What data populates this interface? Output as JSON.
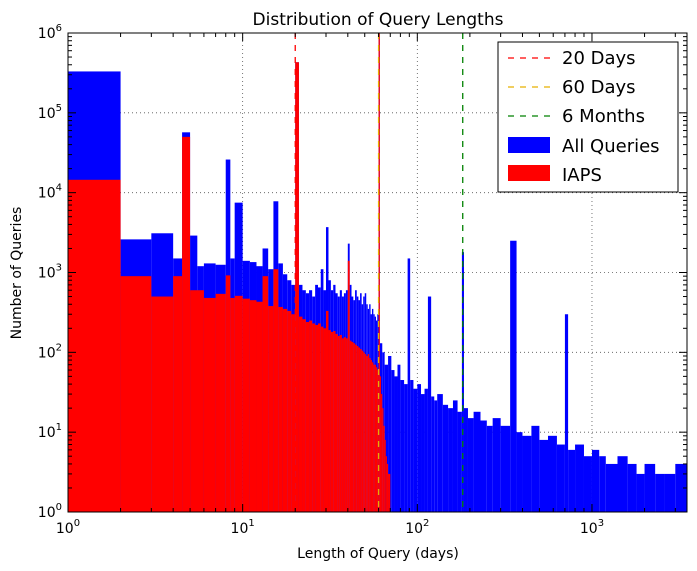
{
  "chart_data": {
    "type": "bar",
    "title": "Distribution of Query Lengths",
    "xlabel": "Length of Query (days)",
    "ylabel": "Number of Queries",
    "xscale": "log",
    "yscale": "log",
    "xlim": [
      1,
      3500
    ],
    "ylim": [
      1,
      1000000
    ],
    "grid": true,
    "legend_position": "top-right",
    "x_ticks": [
      {
        "value": 1,
        "base": "10",
        "exp": "0"
      },
      {
        "value": 10,
        "base": "10",
        "exp": "1"
      },
      {
        "value": 100,
        "base": "10",
        "exp": "2"
      },
      {
        "value": 1000,
        "base": "10",
        "exp": "3"
      }
    ],
    "y_ticks": [
      {
        "value": 1,
        "base": "10",
        "exp": "0"
      },
      {
        "value": 10,
        "base": "10",
        "exp": "1"
      },
      {
        "value": 100,
        "base": "10",
        "exp": "2"
      },
      {
        "value": 1000,
        "base": "10",
        "exp": "3"
      },
      {
        "value": 10000,
        "base": "10",
        "exp": "4"
      },
      {
        "value": 100000,
        "base": "10",
        "exp": "5"
      },
      {
        "value": 1000000,
        "base": "10",
        "exp": "6"
      }
    ],
    "vlines": [
      {
        "name": "20 Days",
        "x": 20,
        "color": "#ff0000"
      },
      {
        "name": "60 Days",
        "x": 60,
        "color": "#e6b000"
      },
      {
        "name": "6 Months",
        "x": 182,
        "color": "#008000"
      }
    ],
    "series": [
      {
        "name": "All Queries",
        "color": "#0000ff",
        "bins": [
          [
            1,
            2,
            330000
          ],
          [
            2,
            3,
            2600
          ],
          [
            3,
            4,
            3100
          ],
          [
            4,
            4.5,
            1500
          ],
          [
            4.5,
            5,
            57000
          ],
          [
            5,
            5.5,
            2900
          ],
          [
            5.5,
            6,
            1200
          ],
          [
            6,
            7,
            1300
          ],
          [
            7,
            8,
            1250
          ],
          [
            8,
            8.5,
            26000
          ],
          [
            8.5,
            9,
            1500
          ],
          [
            9,
            10,
            7500
          ],
          [
            10,
            11,
            1400
          ],
          [
            11,
            12,
            1350
          ],
          [
            12,
            13,
            1200
          ],
          [
            13,
            14,
            2000
          ],
          [
            14,
            15,
            1100
          ],
          [
            15,
            16,
            7800
          ],
          [
            16,
            17,
            1300
          ],
          [
            17,
            18,
            950
          ],
          [
            18,
            19,
            800
          ],
          [
            19,
            20,
            700
          ],
          [
            20,
            21,
            430000
          ],
          [
            21,
            22,
            700
          ],
          [
            22,
            23,
            600
          ],
          [
            23,
            24,
            550
          ],
          [
            24,
            25,
            600
          ],
          [
            25,
            26,
            500
          ],
          [
            26,
            27,
            700
          ],
          [
            27,
            28,
            650
          ],
          [
            28,
            29,
            1100
          ],
          [
            29,
            30,
            600
          ],
          [
            30,
            31,
            3700
          ],
          [
            31,
            32,
            800
          ],
          [
            32,
            33,
            600
          ],
          [
            33,
            34,
            700
          ],
          [
            34,
            35,
            550
          ],
          [
            35,
            36,
            500
          ],
          [
            36,
            37,
            600
          ],
          [
            37,
            38,
            500
          ],
          [
            38,
            39,
            550
          ],
          [
            39,
            40,
            600
          ],
          [
            40,
            41,
            2300
          ],
          [
            41,
            42,
            700
          ],
          [
            42,
            43,
            500
          ],
          [
            43,
            44,
            450
          ],
          [
            44,
            45,
            600
          ],
          [
            45,
            46,
            500
          ],
          [
            46,
            47,
            450
          ],
          [
            47,
            48,
            550
          ],
          [
            48,
            49,
            400
          ],
          [
            49,
            50,
            500
          ],
          [
            50,
            51,
            550
          ],
          [
            51,
            52,
            400
          ],
          [
            52,
            53,
            350
          ],
          [
            53,
            54,
            400
          ],
          [
            54,
            55,
            300
          ],
          [
            55,
            56,
            350
          ],
          [
            56,
            57,
            300
          ],
          [
            57,
            58,
            280
          ],
          [
            58,
            59,
            250
          ],
          [
            59,
            60,
            300
          ],
          [
            60,
            61,
            1000000
          ],
          [
            61,
            63,
            130
          ],
          [
            63,
            65,
            100
          ],
          [
            65,
            68,
            70
          ],
          [
            68,
            71,
            90
          ],
          [
            71,
            74,
            60
          ],
          [
            74,
            77,
            50
          ],
          [
            77,
            80,
            70
          ],
          [
            80,
            84,
            45
          ],
          [
            84,
            88,
            40
          ],
          [
            88,
            91,
            1500
          ],
          [
            91,
            95,
            45
          ],
          [
            95,
            100,
            35
          ],
          [
            100,
            105,
            40
          ],
          [
            105,
            110,
            30
          ],
          [
            110,
            115,
            35
          ],
          [
            115,
            120,
            500
          ],
          [
            120,
            125,
            28
          ],
          [
            125,
            130,
            25
          ],
          [
            130,
            140,
            30
          ],
          [
            140,
            150,
            22
          ],
          [
            150,
            160,
            20
          ],
          [
            160,
            170,
            25
          ],
          [
            170,
            180,
            18
          ],
          [
            180,
            185,
            1800
          ],
          [
            185,
            195,
            20
          ],
          [
            195,
            210,
            15
          ],
          [
            210,
            230,
            18
          ],
          [
            230,
            250,
            14
          ],
          [
            250,
            270,
            12
          ],
          [
            270,
            300,
            15
          ],
          [
            300,
            340,
            12
          ],
          [
            340,
            370,
            2500
          ],
          [
            370,
            400,
            10
          ],
          [
            400,
            450,
            9
          ],
          [
            450,
            500,
            12
          ],
          [
            500,
            560,
            8
          ],
          [
            560,
            630,
            9
          ],
          [
            630,
            700,
            7
          ],
          [
            700,
            730,
            300
          ],
          [
            730,
            800,
            6
          ],
          [
            800,
            900,
            7
          ],
          [
            900,
            1000,
            5
          ],
          [
            1000,
            1100,
            6
          ],
          [
            1100,
            1200,
            5
          ],
          [
            1200,
            1400,
            4
          ],
          [
            1400,
            1600,
            5
          ],
          [
            1600,
            1800,
            4
          ],
          [
            1800,
            2000,
            3
          ],
          [
            2000,
            2300,
            4
          ],
          [
            2300,
            2600,
            3
          ],
          [
            2600,
            3000,
            3
          ],
          [
            3000,
            3500,
            4
          ]
        ]
      },
      {
        "name": "IAPS",
        "color": "#ff0000",
        "bins": [
          [
            1,
            2,
            14500
          ],
          [
            2,
            3,
            900
          ],
          [
            3,
            4,
            500
          ],
          [
            4,
            4.5,
            900
          ],
          [
            4.5,
            5,
            50000
          ],
          [
            5,
            6,
            600
          ],
          [
            6,
            7,
            480
          ],
          [
            7,
            8,
            540
          ],
          [
            8,
            8.5,
            920
          ],
          [
            8.5,
            9,
            480
          ],
          [
            9,
            10,
            510
          ],
          [
            10,
            11,
            470
          ],
          [
            11,
            12,
            450
          ],
          [
            12,
            13,
            430
          ],
          [
            13,
            14,
            900
          ],
          [
            14,
            15,
            380
          ],
          [
            15,
            16,
            1100
          ],
          [
            16,
            17,
            370
          ],
          [
            17,
            18,
            350
          ],
          [
            18,
            19,
            330
          ],
          [
            19,
            20,
            300
          ],
          [
            20,
            21,
            430000
          ],
          [
            21,
            22,
            280
          ],
          [
            22,
            23,
            260
          ],
          [
            23,
            24,
            240
          ],
          [
            24,
            25,
            250
          ],
          [
            25,
            26,
            230
          ],
          [
            26,
            27,
            220
          ],
          [
            27,
            28,
            230
          ],
          [
            28,
            29,
            210
          ],
          [
            29,
            30,
            200
          ],
          [
            30,
            31,
            330
          ],
          [
            31,
            32,
            190
          ],
          [
            32,
            33,
            180
          ],
          [
            33,
            34,
            185
          ],
          [
            34,
            35,
            170
          ],
          [
            35,
            36,
            160
          ],
          [
            36,
            37,
            165
          ],
          [
            37,
            38,
            150
          ],
          [
            38,
            39,
            155
          ],
          [
            39,
            40,
            150
          ],
          [
            40,
            41,
            1400
          ],
          [
            41,
            42,
            140
          ],
          [
            42,
            43,
            135
          ],
          [
            43,
            44,
            130
          ],
          [
            44,
            45,
            125
          ],
          [
            45,
            46,
            120
          ],
          [
            46,
            47,
            115
          ],
          [
            47,
            48,
            110
          ],
          [
            48,
            49,
            105
          ],
          [
            49,
            50,
            100
          ],
          [
            50,
            51,
            95
          ],
          [
            51,
            52,
            90
          ],
          [
            52,
            53,
            95
          ],
          [
            53,
            54,
            85
          ],
          [
            54,
            55,
            80
          ],
          [
            55,
            56,
            75
          ],
          [
            56,
            57,
            70
          ],
          [
            57,
            58,
            70
          ],
          [
            58,
            59,
            65
          ],
          [
            59,
            60,
            60
          ],
          [
            60,
            61,
            1000000
          ],
          [
            61,
            62,
            50
          ],
          [
            62,
            63,
            30
          ],
          [
            63,
            64,
            20
          ],
          [
            64,
            65,
            12
          ],
          [
            65,
            66,
            8
          ],
          [
            66,
            67,
            5
          ],
          [
            67,
            68,
            4
          ],
          [
            68,
            70,
            3
          ]
        ]
      }
    ]
  }
}
